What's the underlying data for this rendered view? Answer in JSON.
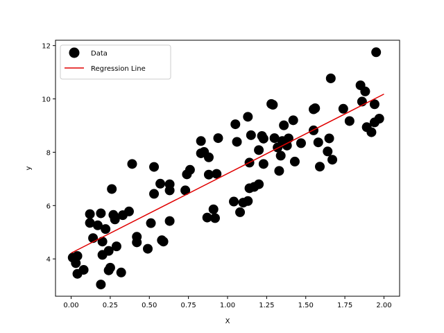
{
  "chart_data": {
    "type": "scatter",
    "xlabel": "X",
    "ylabel": "y",
    "xlim": [
      -0.1,
      2.1
    ],
    "ylim": [
      2.6,
      12.2
    ],
    "xticks": [
      0.0,
      0.25,
      0.5,
      0.75,
      1.0,
      1.25,
      1.5,
      1.75,
      2.0
    ],
    "xtick_labels": [
      "0.00",
      "0.25",
      "0.50",
      "0.75",
      "1.00",
      "1.25",
      "1.50",
      "1.75",
      "2.00"
    ],
    "yticks": [
      4,
      6,
      8,
      10,
      12
    ],
    "ytick_labels": [
      "4",
      "6",
      "8",
      "10",
      "12"
    ],
    "grid": false,
    "legend_position": "upper-left",
    "series": [
      {
        "name": "Data",
        "kind": "scatter",
        "color": "#000000",
        "points": [
          [
            0.01,
            4.05
          ],
          [
            0.03,
            3.84
          ],
          [
            0.04,
            4.11
          ],
          [
            0.04,
            3.44
          ],
          [
            0.08,
            3.59
          ],
          [
            0.12,
            5.68
          ],
          [
            0.12,
            5.35
          ],
          [
            0.14,
            4.78
          ],
          [
            0.17,
            5.26
          ],
          [
            0.19,
            3.04
          ],
          [
            0.19,
            5.71
          ],
          [
            0.2,
            4.15
          ],
          [
            0.2,
            4.65
          ],
          [
            0.22,
            5.12
          ],
          [
            0.24,
            4.3
          ],
          [
            0.24,
            3.57
          ],
          [
            0.25,
            3.67
          ],
          [
            0.26,
            6.62
          ],
          [
            0.27,
            5.65
          ],
          [
            0.28,
            5.48
          ],
          [
            0.29,
            4.47
          ],
          [
            0.32,
            3.49
          ],
          [
            0.33,
            5.64
          ],
          [
            0.37,
            5.78
          ],
          [
            0.39,
            7.56
          ],
          [
            0.42,
            4.83
          ],
          [
            0.42,
            4.62
          ],
          [
            0.49,
            4.38
          ],
          [
            0.51,
            5.34
          ],
          [
            0.53,
            6.44
          ],
          [
            0.53,
            7.45
          ],
          [
            0.57,
            6.82
          ],
          [
            0.58,
            4.7
          ],
          [
            0.59,
            4.65
          ],
          [
            0.63,
            6.57
          ],
          [
            0.63,
            6.8
          ],
          [
            0.63,
            5.42
          ],
          [
            0.73,
            6.57
          ],
          [
            0.74,
            7.17
          ],
          [
            0.76,
            7.34
          ],
          [
            0.83,
            8.42
          ],
          [
            0.83,
            7.96
          ],
          [
            0.85,
            8.01
          ],
          [
            0.87,
            5.55
          ],
          [
            0.88,
            7.81
          ],
          [
            0.88,
            7.16
          ],
          [
            0.91,
            5.86
          ],
          [
            0.92,
            5.53
          ],
          [
            0.93,
            7.19
          ],
          [
            0.94,
            8.53
          ],
          [
            1.04,
            6.15
          ],
          [
            1.05,
            9.05
          ],
          [
            1.06,
            8.39
          ],
          [
            1.08,
            5.75
          ],
          [
            1.1,
            6.11
          ],
          [
            1.13,
            6.17
          ],
          [
            1.13,
            9.33
          ],
          [
            1.14,
            6.65
          ],
          [
            1.14,
            7.61
          ],
          [
            1.15,
            8.64
          ],
          [
            1.17,
            6.7
          ],
          [
            1.2,
            8.08
          ],
          [
            1.2,
            6.8
          ],
          [
            1.22,
            8.61
          ],
          [
            1.23,
            8.51
          ],
          [
            1.23,
            7.56
          ],
          [
            1.28,
            9.81
          ],
          [
            1.29,
            9.78
          ],
          [
            1.3,
            8.53
          ],
          [
            1.32,
            8.18
          ],
          [
            1.33,
            7.3
          ],
          [
            1.34,
            7.87
          ],
          [
            1.35,
            8.42
          ],
          [
            1.36,
            9.01
          ],
          [
            1.38,
            8.25
          ],
          [
            1.39,
            8.52
          ],
          [
            1.42,
            9.2
          ],
          [
            1.43,
            7.65
          ],
          [
            1.47,
            8.34
          ],
          [
            1.55,
            9.61
          ],
          [
            1.55,
            8.82
          ],
          [
            1.56,
            9.65
          ],
          [
            1.58,
            8.37
          ],
          [
            1.59,
            7.46
          ],
          [
            1.64,
            8.03
          ],
          [
            1.65,
            8.52
          ],
          [
            1.66,
            10.77
          ],
          [
            1.67,
            7.72
          ],
          [
            1.74,
            9.63
          ],
          [
            1.78,
            9.17
          ],
          [
            1.85,
            10.51
          ],
          [
            1.86,
            9.9
          ],
          [
            1.88,
            10.28
          ],
          [
            1.89,
            8.94
          ],
          [
            1.92,
            8.75
          ],
          [
            1.94,
            9.8
          ],
          [
            1.94,
            9.12
          ],
          [
            1.95,
            11.75
          ],
          [
            1.97,
            9.26
          ]
        ]
      },
      {
        "name": "Regression Line",
        "kind": "line",
        "color": "#e00000",
        "x": [
          0.0,
          2.0
        ],
        "y": [
          4.22,
          10.18
        ]
      }
    ]
  }
}
